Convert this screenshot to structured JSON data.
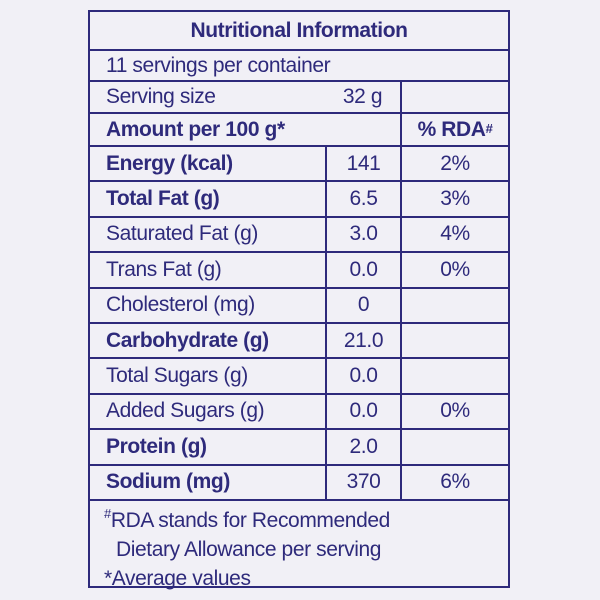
{
  "title": "Nutritional Information",
  "servings_per_container": "11 servings per container",
  "serving_size": {
    "label": "Serving size",
    "value": "32 g"
  },
  "header": {
    "amount_label": "Amount per 100 g*",
    "rda_label": "% RDA",
    "rda_sup": "#"
  },
  "rows": [
    {
      "label": "Energy (kcal)",
      "value": "141",
      "rda": "2%"
    },
    {
      "label": "Total Fat (g)",
      "value": "6.5",
      "rda": "3%"
    },
    {
      "label": "Saturated Fat (g)",
      "value": "3.0",
      "rda": "4%"
    },
    {
      "label": "Trans Fat (g)",
      "value": "0.0",
      "rda": "0%"
    },
    {
      "label": "Cholesterol (mg)",
      "value": "0",
      "rda": ""
    },
    {
      "label": "Carbohydrate (g)",
      "value": "21.0",
      "rda": ""
    },
    {
      "label": "Total Sugars (g)",
      "value": "0.0",
      "rda": ""
    },
    {
      "label": "Added Sugars (g)",
      "value": "0.0",
      "rda": "0%"
    },
    {
      "label": "Protein (g)",
      "value": "2.0",
      "rda": ""
    },
    {
      "label": "Sodium (mg)",
      "value": "370",
      "rda": "6%"
    }
  ],
  "footnotes": {
    "rda_sup": "#",
    "line1": "RDA stands for Recommended",
    "line2": "Dietary Allowance per serving",
    "line3": "*Average values"
  },
  "colors": {
    "ink": "#2e2a7b",
    "background": "#f1f0f6"
  }
}
